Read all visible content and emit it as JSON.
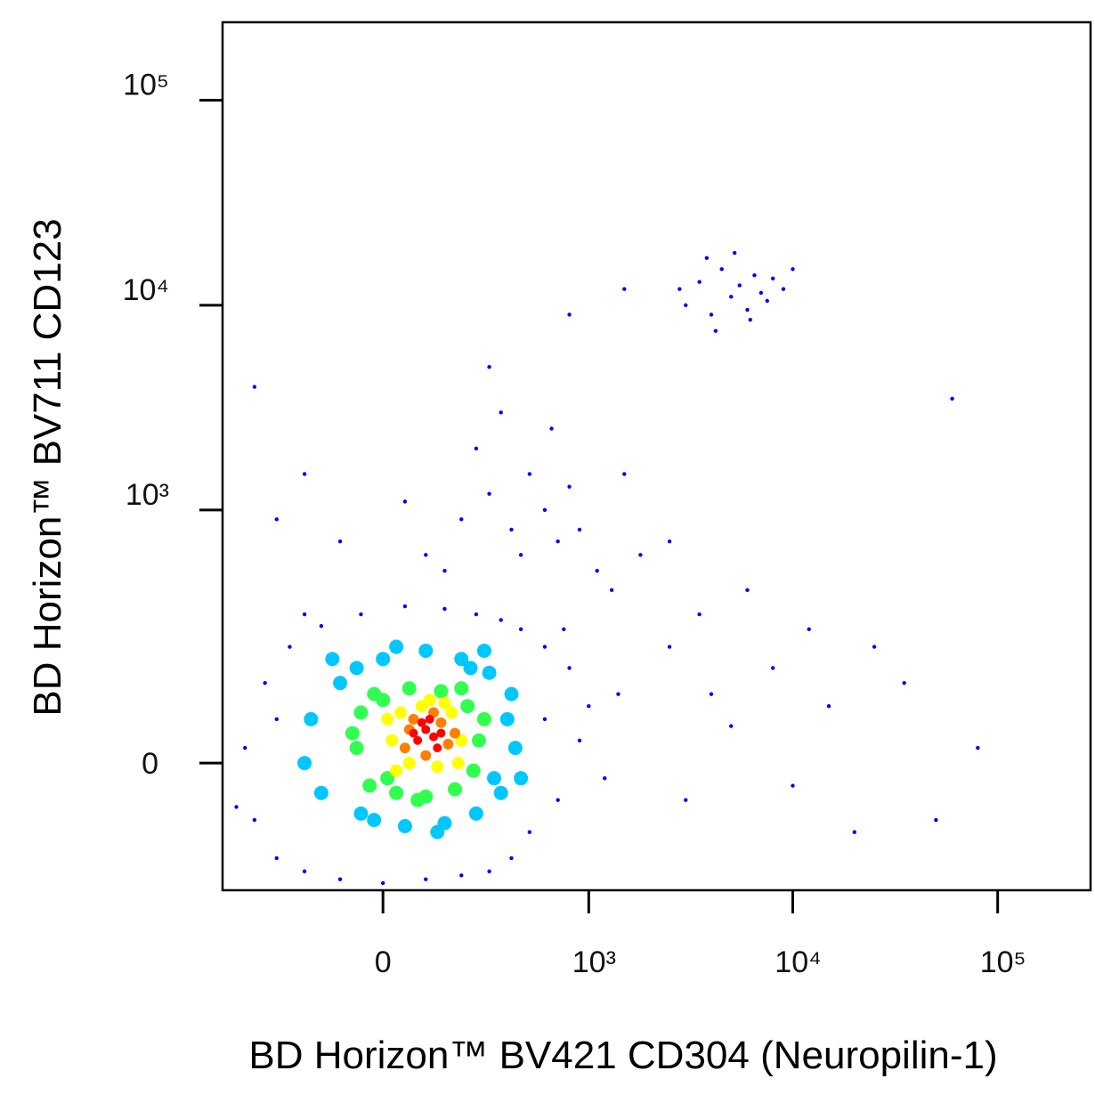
{
  "chart_data": {
    "type": "scatter",
    "xlabel": "BD Horizon™ BV421 CD304 (Neuropilin-1)",
    "ylabel": "BD Horizon™ BV711 CD123",
    "xscale": "biexponential",
    "yscale": "biexponential",
    "xlim": [
      -590,
      284000
    ],
    "ylim": [
      -230,
      240000
    ],
    "xticks": [
      0,
      {
        "value": 1000,
        "label": "10³"
      },
      {
        "value": 10000,
        "label": "10⁴"
      },
      {
        "value": 100000,
        "label": "10⁵"
      }
    ],
    "yticks": [
      0,
      {
        "value": 1000,
        "label": "10³"
      },
      {
        "value": 10000,
        "label": "10⁴"
      },
      {
        "value": 100000,
        "label": "10⁵"
      }
    ],
    "series": [
      {
        "color": "#0000ff",
        "x": [
          -450,
          -400,
          -350,
          -300,
          -250,
          -200,
          -150,
          -100,
          -50,
          0,
          50,
          100,
          150,
          200,
          250,
          300,
          350,
          400,
          450,
          500,
          600,
          700,
          800,
          900,
          1000,
          1200,
          1400,
          -500,
          -300,
          -200,
          600,
          750,
          100,
          200,
          300,
          400,
          500,
          250,
          350,
          150,
          450,
          600,
          700,
          800,
          50,
          -100,
          -200,
          650,
          900,
          1100,
          1300,
          300,
          -300,
          1800,
          2500,
          3000,
          3500,
          4000,
          4500,
          5000,
          5500,
          6000,
          6500,
          7000,
          7500,
          8000,
          9000,
          3800,
          5200,
          6200,
          2800,
          10000,
          4200,
          2500,
          3000,
          3500,
          4000,
          5000,
          6000,
          8000,
          10000,
          12000,
          15000,
          20000,
          25000,
          35000,
          50000,
          80000,
          60000,
          1500,
          800,
          -400,
          1500
        ],
        "y": [
          20,
          -80,
          120,
          -150,
          200,
          -180,
          260,
          -200,
          300,
          -210,
          330,
          -200,
          320,
          -190,
          300,
          -180,
          280,
          -150,
          250,
          -100,
          200,
          -50,
          150,
          30,
          80,
          -20,
          100,
          -60,
          60,
          300,
          60,
          250,
          600,
          900,
          1200,
          800,
          1500,
          2000,
          3000,
          500,
          600,
          1000,
          700,
          1300,
          1100,
          700,
          1500,
          2500,
          800,
          500,
          400,
          5000,
          900,
          600,
          700,
          10000,
          13000,
          9000,
          15000,
          11000,
          12500,
          9500,
          14000,
          11500,
          10500,
          13500,
          12000,
          17000,
          18000,
          8500,
          12000,
          15000,
          7500,
          200,
          -50,
          300,
          100,
          50,
          400,
          150,
          -30,
          250,
          80,
          -100,
          200,
          120,
          -80,
          20,
          3500,
          12000,
          9000,
          4000,
          1500
        ]
      },
      {
        "color": "#00c8ff",
        "x": [
          -150,
          -100,
          -50,
          0,
          50,
          100,
          150,
          200,
          250,
          300,
          350,
          400,
          420,
          -180,
          -120,
          320,
          -60,
          230,
          130,
          -20,
          380,
          450,
          -200,
          30,
          280
        ],
        "y": [
          -40,
          120,
          -70,
          170,
          -90,
          190,
          -85,
          170,
          -70,
          140,
          -40,
          100,
          20,
          60,
          170,
          -20,
          150,
          150,
          -100,
          -80,
          60,
          -20,
          0,
          200,
          190
        ]
      },
      {
        "color": "#30ff50",
        "x": [
          -60,
          -30,
          0,
          30,
          60,
          100,
          140,
          180,
          220,
          260,
          -50,
          240,
          -20,
          200,
          80,
          280,
          -70,
          10
        ],
        "y": [
          20,
          -30,
          90,
          -40,
          110,
          -45,
          105,
          -35,
          80,
          30,
          70,
          -10,
          100,
          110,
          -50,
          60,
          40,
          -20
        ]
      },
      {
        "color": "#ffff00",
        "x": [
          20,
          40,
          60,
          90,
          130,
          170,
          200,
          30,
          190,
          110,
          10,
          150
        ],
        "y": [
          30,
          70,
          0,
          80,
          -5,
          70,
          30,
          -10,
          0,
          90,
          60,
          85
        ]
      },
      {
        "color": "#ff8000",
        "x": [
          50,
          70,
          100,
          140,
          160,
          120,
          60,
          180
        ],
        "y": [
          20,
          60,
          10,
          55,
          25,
          70,
          45,
          40
        ]
      },
      {
        "color": "#ff0000",
        "x": [
          80,
          100,
          120,
          90,
          130,
          110,
          70,
          140
        ],
        "y": [
          30,
          45,
          35,
          55,
          20,
          60,
          40,
          40
        ]
      }
    ]
  }
}
